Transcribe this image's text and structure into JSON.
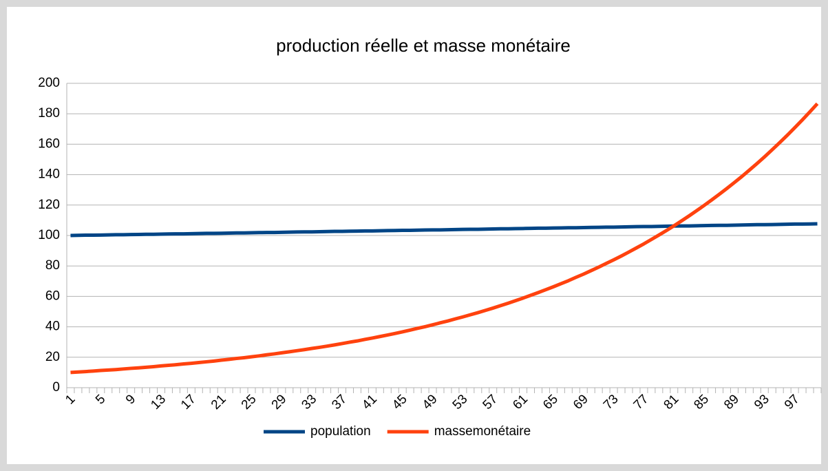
{
  "chart_data": {
    "type": "line",
    "title": "production réelle et masse monétaire",
    "categories": [
      "1",
      null,
      null,
      null,
      "5",
      null,
      null,
      null,
      "9",
      null,
      null,
      null,
      "13",
      null,
      null,
      null,
      "17",
      null,
      null,
      null,
      "21",
      null,
      null,
      null,
      "25",
      null,
      null,
      null,
      "29",
      null,
      null,
      null,
      "33",
      null,
      null,
      null,
      "37",
      null,
      null,
      null,
      "41",
      null,
      null,
      null,
      "45",
      null,
      null,
      null,
      "49",
      null,
      null,
      null,
      "53",
      null,
      null,
      null,
      "57",
      null,
      null,
      null,
      "61",
      null,
      null,
      null,
      "65",
      null,
      null,
      null,
      "69",
      null,
      null,
      null,
      "73",
      null,
      null,
      null,
      "77",
      null,
      null,
      null,
      "81",
      null,
      null,
      null,
      "85",
      null,
      null,
      null,
      "89",
      null,
      null,
      null,
      "93",
      null,
      null,
      null,
      "97",
      null,
      null,
      null
    ],
    "series": [
      {
        "name": "population",
        "color": "#004586",
        "values": [
          100.0,
          100.1,
          100.2,
          100.2,
          100.3,
          100.4,
          100.5,
          100.5,
          100.6,
          100.7,
          100.8,
          100.8,
          100.9,
          101.0,
          101.1,
          101.1,
          101.2,
          101.3,
          101.4,
          101.4,
          101.5,
          101.6,
          101.7,
          101.7,
          101.8,
          101.9,
          102.0,
          102.0,
          102.1,
          102.2,
          102.3,
          102.4,
          102.4,
          102.5,
          102.6,
          102.7,
          102.7,
          102.8,
          102.9,
          103.0,
          103.0,
          103.1,
          103.2,
          103.3,
          103.4,
          103.4,
          103.5,
          103.6,
          103.7,
          103.7,
          103.8,
          103.9,
          104.0,
          104.1,
          104.1,
          104.2,
          104.3,
          104.4,
          104.4,
          104.5,
          104.6,
          104.7,
          104.8,
          104.8,
          104.9,
          105.0,
          105.1,
          105.1,
          105.2,
          105.3,
          105.4,
          105.5,
          105.5,
          105.6,
          105.7,
          105.8,
          105.9,
          105.9,
          106.0,
          106.1,
          106.2,
          106.3,
          106.3,
          106.4,
          106.5,
          106.6,
          106.7,
          106.7,
          106.8,
          106.9,
          107.0,
          107.1,
          107.1,
          107.2,
          107.3,
          107.4,
          107.5,
          107.5,
          107.6,
          107.7
        ]
      },
      {
        "name": "massemonétaire",
        "color": "#ff420e",
        "values": [
          10.0,
          10.3,
          10.6,
          10.9,
          11.3,
          11.6,
          11.9,
          12.3,
          12.7,
          13.0,
          13.4,
          13.8,
          14.3,
          14.7,
          15.1,
          15.6,
          16.0,
          16.5,
          17.0,
          17.5,
          18.1,
          18.6,
          19.2,
          19.7,
          20.3,
          20.9,
          21.6,
          22.2,
          22.9,
          23.6,
          24.3,
          25.0,
          25.8,
          26.5,
          27.3,
          28.1,
          29.0,
          29.9,
          30.7,
          31.7,
          32.6,
          33.6,
          34.6,
          35.6,
          36.7,
          37.8,
          39.0,
          40.1,
          41.3,
          42.6,
          43.8,
          45.2,
          46.5,
          47.9,
          49.3,
          50.8,
          52.3,
          53.9,
          55.5,
          57.2,
          58.9,
          60.7,
          62.5,
          64.4,
          66.3,
          68.3,
          70.3,
          72.5,
          74.6,
          76.9,
          79.2,
          81.6,
          84.0,
          86.5,
          89.1,
          91.8,
          94.5,
          97.4,
          100.3,
          103.3,
          106.4,
          109.6,
          112.9,
          116.3,
          119.8,
          123.4,
          127.1,
          130.9,
          134.8,
          138.8,
          143.0,
          147.3,
          151.7,
          156.3,
          161.0,
          165.8,
          170.8,
          175.9,
          181.2,
          186.6
        ]
      }
    ],
    "ylim": [
      0,
      200
    ],
    "yticks": [
      0,
      20,
      40,
      60,
      80,
      100,
      120,
      140,
      160,
      180,
      200
    ],
    "grid": true,
    "legend": "bottom"
  }
}
